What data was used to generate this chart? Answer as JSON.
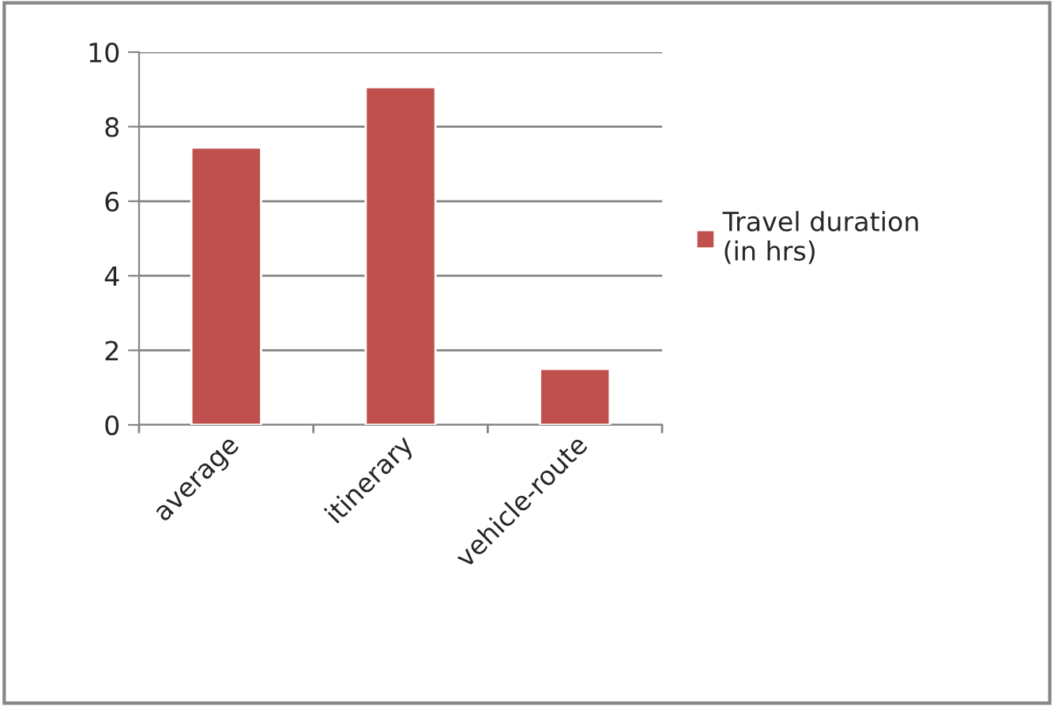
{
  "chart_data": {
    "type": "bar",
    "categories": [
      "average",
      "itinerary",
      "vehicle-route"
    ],
    "series": [
      {
        "name": "Travel duration\n(in hrs)",
        "color": "#c0504d",
        "values": [
          7.44,
          9.06,
          1.5
        ]
      }
    ],
    "ylim": [
      0,
      10
    ],
    "yticks": [
      0,
      2,
      4,
      6,
      8,
      10
    ],
    "grid": "y",
    "legend": "right"
  }
}
